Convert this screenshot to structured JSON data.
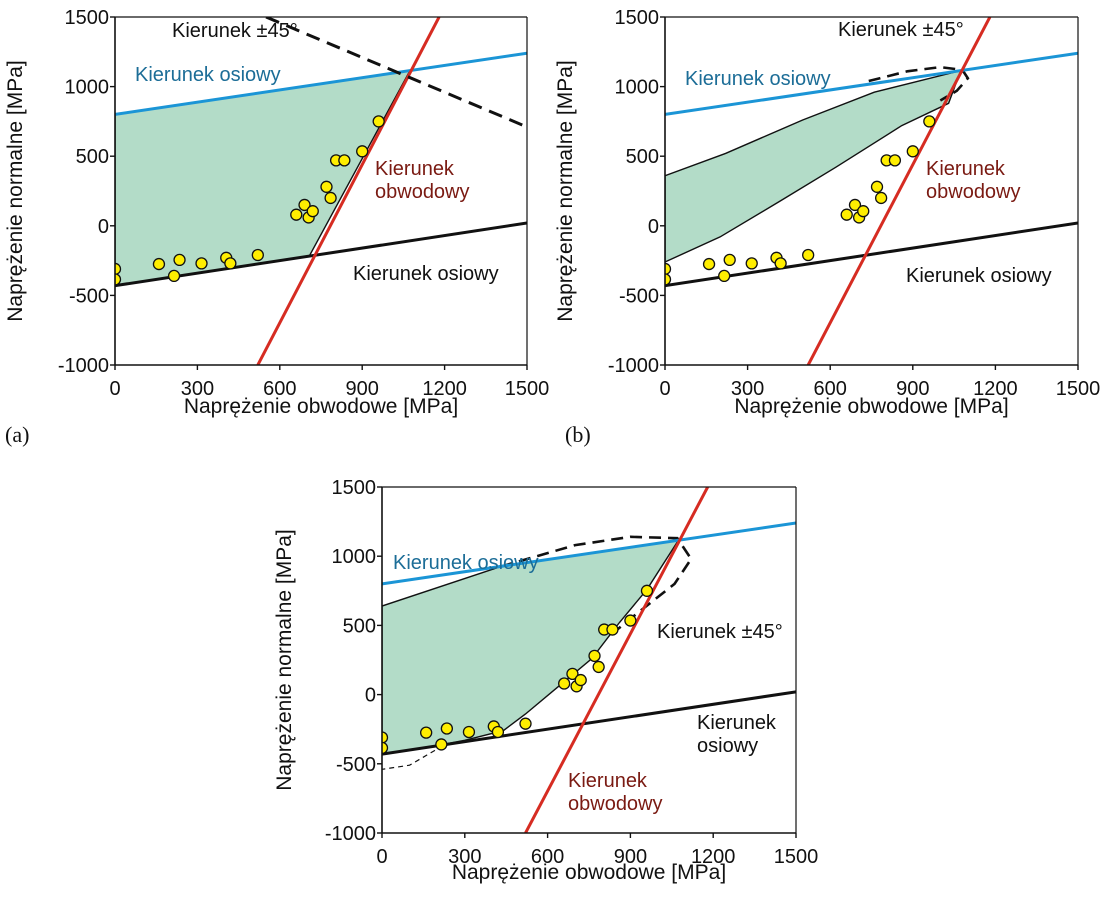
{
  "chart_data": [
    {
      "type": "scatter",
      "panel": "(a)",
      "xlabel": "Naprężenie obwodowe [MPa]",
      "ylabel": "Naprężenie normalne [MPa]",
      "xlim": [
        0,
        1500
      ],
      "ylim": [
        -1000,
        1500
      ],
      "xticks": [
        "0",
        "300",
        "600",
        "900",
        "1200",
        "1500"
      ],
      "yticks": [
        "-1000",
        "-500",
        "0",
        "500",
        "1000",
        "1500"
      ],
      "lines": [
        {
          "label": "Kierunek osiowy",
          "color": "#1b95d6",
          "style": "solid",
          "points": [
            [
              0,
              800
            ],
            [
              1500,
              1240
            ]
          ]
        },
        {
          "label": "Kierunek osiowy",
          "color": "#111111",
          "style": "solid",
          "points": [
            [
              0,
              -430
            ],
            [
              1500,
              20
            ]
          ]
        },
        {
          "label": "Kierunek obwodowy",
          "color": "#d62c22",
          "style": "solid",
          "points": [
            [
              520,
              -1000
            ],
            [
              1180,
              1500
            ]
          ]
        },
        {
          "label": "Kierunek ±45°",
          "color": "#111111",
          "style": "dashed",
          "points": [
            [
              550,
              1500
            ],
            [
              1500,
              710
            ]
          ]
        }
      ],
      "region": {
        "color": "#b3dcc8",
        "points": [
          [
            0,
            800
          ],
          [
            1074,
            1115
          ],
          [
            708,
            -215
          ],
          [
            0,
            -430
          ]
        ]
      },
      "points": [
        [
          0,
          -310
        ],
        [
          0,
          -385
        ],
        [
          160,
          -275
        ],
        [
          215,
          -360
        ],
        [
          235,
          -245
        ],
        [
          315,
          -270
        ],
        [
          405,
          -230
        ],
        [
          420,
          -270
        ],
        [
          520,
          -210
        ],
        [
          660,
          80
        ],
        [
          690,
          150
        ],
        [
          705,
          60
        ],
        [
          720,
          105
        ],
        [
          770,
          280
        ],
        [
          785,
          200
        ],
        [
          805,
          470
        ],
        [
          835,
          470
        ],
        [
          900,
          535
        ],
        [
          960,
          750
        ]
      ],
      "annotations": [
        {
          "text": "Kierunek ±45°",
          "color": "#111111"
        },
        {
          "text": "Kierunek osiowy",
          "color": "#1c6d97"
        },
        {
          "text": "Kierunek obwodowy",
          "color": "#7a1a12"
        },
        {
          "text": "Kierunek osiowy",
          "color": "#111111"
        }
      ]
    },
    {
      "type": "scatter",
      "panel": "(b)",
      "xlabel": "Naprężenie obwodowe [MPa]",
      "ylabel": "Naprężenie normalne [MPa]",
      "xlim": [
        0,
        1500
      ],
      "ylim": [
        -1000,
        1500
      ],
      "xticks": [
        "0",
        "300",
        "600",
        "900",
        "1200",
        "1500"
      ],
      "yticks": [
        "-1000",
        "-500",
        "0",
        "500",
        "1000",
        "1500"
      ],
      "lines": [
        {
          "label": "Kierunek osiowy",
          "color": "#1b95d6",
          "style": "solid",
          "points": [
            [
              0,
              800
            ],
            [
              1500,
              1240
            ]
          ]
        },
        {
          "label": "Kierunek osiowy",
          "color": "#111111",
          "style": "solid",
          "points": [
            [
              0,
              -430
            ],
            [
              1500,
              20
            ]
          ]
        },
        {
          "label": "Kierunek obwodowy",
          "color": "#d62c22",
          "style": "solid",
          "points": [
            [
              520,
              -1000
            ],
            [
              1180,
              1500
            ]
          ]
        }
      ],
      "region": {
        "color": "#b3dcc8",
        "points": [
          [
            0,
            360
          ],
          [
            220,
            520
          ],
          [
            500,
            760
          ],
          [
            760,
            960
          ],
          [
            1074,
            1115
          ],
          [
            1030,
            880
          ],
          [
            860,
            720
          ],
          [
            620,
            420
          ],
          [
            420,
            180
          ],
          [
            200,
            -80
          ],
          [
            0,
            -260
          ]
        ]
      },
      "ellipse": {
        "style": "dashed",
        "points": [
          [
            740,
            1040
          ],
          [
            880,
            1110
          ],
          [
            1000,
            1140
          ],
          [
            1080,
            1120
          ],
          [
            1100,
            1060
          ],
          [
            1060,
            970
          ],
          [
            1000,
            900
          ]
        ]
      },
      "points": [
        [
          0,
          -310
        ],
        [
          0,
          -385
        ],
        [
          160,
          -275
        ],
        [
          215,
          -360
        ],
        [
          235,
          -245
        ],
        [
          315,
          -270
        ],
        [
          405,
          -230
        ],
        [
          420,
          -270
        ],
        [
          520,
          -210
        ],
        [
          660,
          80
        ],
        [
          690,
          150
        ],
        [
          705,
          60
        ],
        [
          720,
          105
        ],
        [
          770,
          280
        ],
        [
          785,
          200
        ],
        [
          805,
          470
        ],
        [
          835,
          470
        ],
        [
          900,
          535
        ],
        [
          960,
          750
        ]
      ],
      "annotations": [
        {
          "text": "Kierunek ±45°",
          "color": "#111111"
        },
        {
          "text": "Kierunek osiowy",
          "color": "#1c6d97"
        },
        {
          "text": "Kierunek obwodowy",
          "color": "#7a1a12"
        },
        {
          "text": "Kierunek osiowy",
          "color": "#111111"
        }
      ]
    },
    {
      "type": "scatter",
      "panel": "",
      "xlabel": "Naprężenie obwodowe [MPa]",
      "ylabel": "Naprężenie normalne [MPa]",
      "xlim": [
        0,
        1500
      ],
      "ylim": [
        -1000,
        1500
      ],
      "xticks": [
        "0",
        "300",
        "600",
        "900",
        "1200",
        "1500"
      ],
      "yticks": [
        "-1000",
        "-500",
        "0",
        "500",
        "1000",
        "1500"
      ],
      "lines": [
        {
          "label": "Kierunek osiowy",
          "color": "#1b95d6",
          "style": "solid",
          "points": [
            [
              0,
              800
            ],
            [
              1500,
              1240
            ]
          ]
        },
        {
          "label": "Kierunek osiowy",
          "color": "#111111",
          "style": "solid",
          "points": [
            [
              0,
              -430
            ],
            [
              1500,
              20
            ]
          ]
        },
        {
          "label": "Kierunek obwodowy",
          "color": "#d62c22",
          "style": "solid",
          "points": [
            [
              520,
              -1000
            ],
            [
              1180,
              1500
            ]
          ]
        }
      ],
      "region": {
        "color": "#b3dcc8",
        "points": [
          [
            0,
            640
          ],
          [
            430,
            925
          ],
          [
            1074,
            1115
          ],
          [
            960,
            760
          ],
          [
            860,
            520
          ],
          [
            760,
            260
          ],
          [
            640,
            60
          ],
          [
            520,
            -140
          ],
          [
            440,
            -260
          ],
          [
            300,
            -330
          ],
          [
            220,
            -360
          ],
          [
            0,
            -430
          ]
        ]
      },
      "ellipse": {
        "style": "dashed",
        "points": [
          [
            430,
            925
          ],
          [
            700,
            1080
          ],
          [
            900,
            1140
          ],
          [
            1070,
            1130
          ],
          [
            1120,
            980
          ],
          [
            1060,
            800
          ],
          [
            920,
            580
          ],
          [
            840,
            450
          ]
        ]
      },
      "extra_dashed": {
        "style": "dashed",
        "points": [
          [
            220,
            -370
          ],
          [
            100,
            -510
          ],
          [
            0,
            -540
          ]
        ]
      },
      "points": [
        [
          0,
          -310
        ],
        [
          0,
          -385
        ],
        [
          160,
          -275
        ],
        [
          215,
          -360
        ],
        [
          235,
          -245
        ],
        [
          315,
          -270
        ],
        [
          405,
          -230
        ],
        [
          420,
          -270
        ],
        [
          520,
          -210
        ],
        [
          660,
          80
        ],
        [
          690,
          150
        ],
        [
          705,
          60
        ],
        [
          720,
          105
        ],
        [
          770,
          280
        ],
        [
          785,
          200
        ],
        [
          805,
          470
        ],
        [
          835,
          470
        ],
        [
          900,
          535
        ],
        [
          960,
          750
        ]
      ],
      "annotations": [
        {
          "text": "Kierunek osiowy",
          "color": "#1c6d97"
        },
        {
          "text": "Kierunek ±45°",
          "color": "#111111"
        },
        {
          "text": "Kierunek osiowy",
          "color": "#111111"
        },
        {
          "text": "Kierunek obwodowy",
          "color": "#7a1a12"
        }
      ]
    }
  ]
}
